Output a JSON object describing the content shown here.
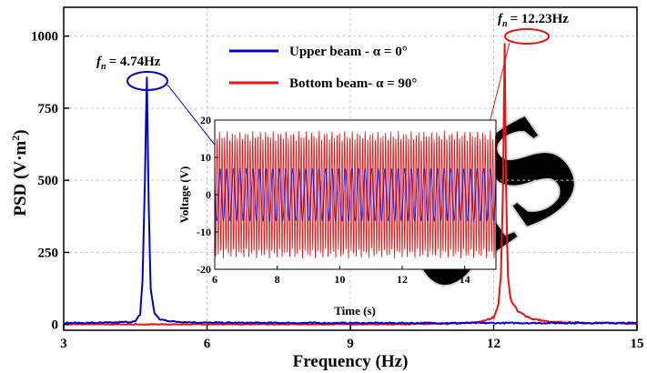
{
  "chart_data": [
    {
      "type": "line",
      "xlabel": "Frequency (Hz)",
      "ylabel": "PSD (V·m",
      "ylabel_sup": "2",
      "ylabel_end": ")",
      "xlim": [
        3,
        15
      ],
      "ylim": [
        -20,
        1100
      ],
      "x_ticks": [
        3,
        6,
        9,
        12,
        15
      ],
      "y_ticks": [
        0,
        250,
        500,
        750,
        1000
      ],
      "x_tick_labels": [
        "3",
        "6",
        "9",
        "12",
        "15"
      ],
      "y_tick_labels": [
        "0",
        "250",
        "500",
        "750",
        "1000"
      ],
      "grid": true,
      "legend_position": "top-center",
      "series": [
        {
          "name": "Upper beam - α = 0°",
          "color": "#0000cc",
          "peak_x": 4.74,
          "peak_y": 855,
          "baseline": 5,
          "x": [
            3.0,
            4.0,
            4.5,
            4.6,
            4.65,
            4.7,
            4.74,
            4.78,
            4.82,
            4.9,
            5.0,
            5.3,
            6.0,
            9.0,
            12.0,
            15.0
          ],
          "y": [
            5,
            6,
            10,
            35,
            150,
            500,
            855,
            420,
            120,
            40,
            18,
            10,
            6,
            5,
            5,
            5
          ]
        },
        {
          "name": "Bottom beam- α = 90°",
          "color": "#ee1111",
          "peak_x": 12.23,
          "peak_y": 1000,
          "baseline": 0,
          "x": [
            3.0,
            9.0,
            11.0,
            11.5,
            11.8,
            12.0,
            12.1,
            12.15,
            12.2,
            12.23,
            12.26,
            12.3,
            12.35,
            12.5,
            12.8,
            13.2,
            15.0
          ],
          "y": [
            0,
            0,
            2,
            5,
            12,
            25,
            70,
            170,
            500,
            1000,
            480,
            160,
            90,
            45,
            20,
            8,
            3
          ]
        }
      ],
      "annotations": [
        {
          "text": "f",
          "sub": "n",
          "value": "= 4.74Hz",
          "x": 4.74,
          "y": 855
        },
        {
          "text": "f",
          "sub": "n",
          "value": "= 12.23Hz",
          "x": 12.23,
          "y": 1000
        }
      ]
    },
    {
      "type": "line",
      "role": "inset",
      "xlabel": "Time (s)",
      "ylabel": "Voltage (V)",
      "xlim": [
        6,
        15
      ],
      "ylim": [
        -20,
        20
      ],
      "x_ticks": [
        6,
        8,
        10,
        12,
        14
      ],
      "y_ticks": [
        -20,
        -10,
        0,
        10,
        20
      ],
      "x_tick_labels": [
        "6",
        "8",
        "10",
        "12",
        "14"
      ],
      "y_tick_labels": [
        "-20",
        "-10",
        "0",
        "10",
        "20"
      ],
      "series": [
        {
          "name": "Bottom beam- α = 90°",
          "color": "#ee1111",
          "amplitude": 16,
          "frequency_hz": 12.23
        },
        {
          "name": "Upper beam - α = 0°",
          "color": "#1a1acc",
          "amplitude": 7,
          "frequency_hz": 4.74
        }
      ]
    }
  ]
}
